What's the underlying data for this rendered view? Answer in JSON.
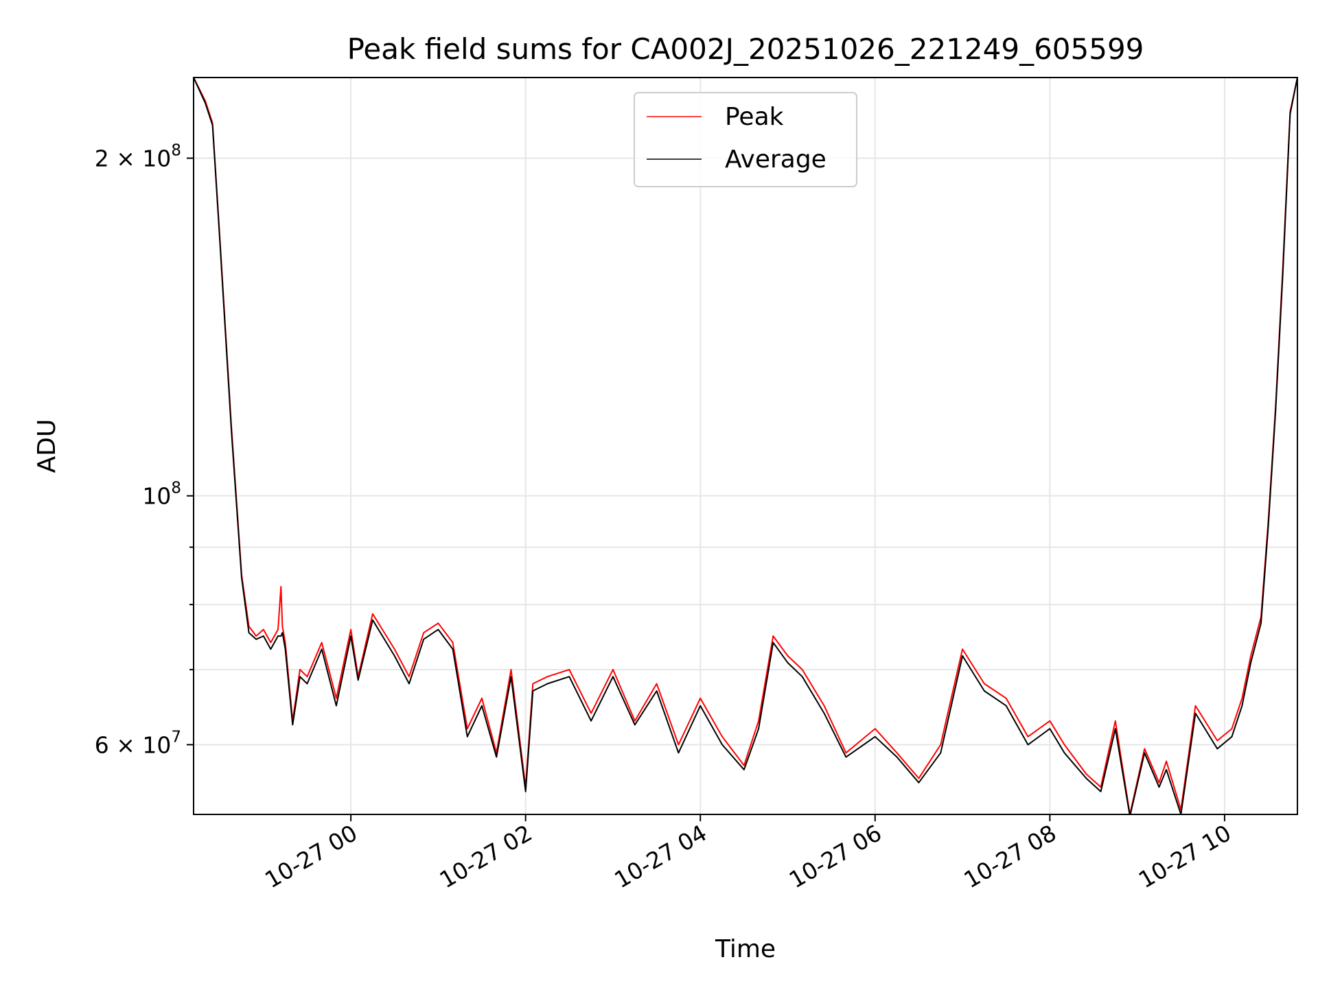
{
  "chart_data": {
    "type": "line",
    "title": "Peak field sums for CA002J_20251026_221249_605599",
    "xlabel": "Time",
    "ylabel": "ADU",
    "yscale": "log",
    "xlim": [
      "2025-10-26 22:12",
      "2025-10-27 10:50"
    ],
    "ylim": [
      52000000,
      236000000
    ],
    "grid": true,
    "legend_position": "top-center",
    "x_ticks": [
      {
        "value": "2025-10-27 00:00",
        "label": "10-27 00"
      },
      {
        "value": "2025-10-27 02:00",
        "label": "10-27 02"
      },
      {
        "value": "2025-10-27 04:00",
        "label": "10-27 04"
      },
      {
        "value": "2025-10-27 06:00",
        "label": "10-27 06"
      },
      {
        "value": "2025-10-27 08:00",
        "label": "10-27 08"
      },
      {
        "value": "2025-10-27 10:00",
        "label": "10-27 10"
      }
    ],
    "y_ticks_major": [
      {
        "value": 60000000,
        "label_mantissa": "6",
        "label_exp": "7"
      },
      {
        "value": 100000000,
        "label_mantissa": "",
        "label_exp": "8"
      },
      {
        "value": 200000000,
        "label_mantissa": "2",
        "label_exp": "8"
      }
    ],
    "y_ticks_minor": [
      70000000,
      80000000,
      90000000
    ],
    "series": [
      {
        "name": "Peak",
        "color": "#ff0000",
        "x": [
          "2025-10-26 22:12",
          "2025-10-26 22:20",
          "2025-10-26 22:25",
          "2025-10-26 22:30",
          "2025-10-26 22:38",
          "2025-10-26 22:45",
          "2025-10-26 22:50",
          "2025-10-26 22:55",
          "2025-10-26 23:00",
          "2025-10-26 23:05",
          "2025-10-26 23:10",
          "2025-10-26 23:12",
          "2025-10-26 23:13",
          "2025-10-26 23:15",
          "2025-10-26 23:20",
          "2025-10-26 23:25",
          "2025-10-26 23:30",
          "2025-10-26 23:40",
          "2025-10-26 23:50",
          "2025-10-27 00:00",
          "2025-10-27 00:05",
          "2025-10-27 00:15",
          "2025-10-27 00:30",
          "2025-10-27 00:40",
          "2025-10-27 00:50",
          "2025-10-27 01:00",
          "2025-10-27 01:10",
          "2025-10-27 01:20",
          "2025-10-27 01:30",
          "2025-10-27 01:40",
          "2025-10-27 01:50",
          "2025-10-27 02:00",
          "2025-10-27 02:05",
          "2025-10-27 02:15",
          "2025-10-27 02:30",
          "2025-10-27 02:45",
          "2025-10-27 03:00",
          "2025-10-27 03:15",
          "2025-10-27 03:30",
          "2025-10-27 03:45",
          "2025-10-27 04:00",
          "2025-10-27 04:15",
          "2025-10-27 04:30",
          "2025-10-27 04:40",
          "2025-10-27 04:50",
          "2025-10-27 05:00",
          "2025-10-27 05:10",
          "2025-10-27 05:25",
          "2025-10-27 05:40",
          "2025-10-27 06:00",
          "2025-10-27 06:15",
          "2025-10-27 06:30",
          "2025-10-27 06:45",
          "2025-10-27 07:00",
          "2025-10-27 07:15",
          "2025-10-27 07:30",
          "2025-10-27 07:45",
          "2025-10-27 08:00",
          "2025-10-27 08:10",
          "2025-10-27 08:25",
          "2025-10-27 08:35",
          "2025-10-27 08:45",
          "2025-10-27 08:55",
          "2025-10-27 09:05",
          "2025-10-27 09:15",
          "2025-10-27 09:20",
          "2025-10-27 09:30",
          "2025-10-27 09:40",
          "2025-10-27 09:55",
          "2025-10-27 10:05",
          "2025-10-27 10:12",
          "2025-10-27 10:18",
          "2025-10-27 10:25",
          "2025-10-27 10:30",
          "2025-10-27 10:35",
          "2025-10-27 10:40",
          "2025-10-27 10:45",
          "2025-10-27 10:50"
        ],
        "y": [
          236000000,
          225000000,
          215000000,
          170000000,
          115000000,
          85000000,
          76500000,
          75000000,
          76000000,
          74000000,
          76000000,
          83000000,
          76500000,
          74000000,
          63000000,
          70000000,
          69000000,
          74000000,
          66000000,
          76000000,
          69000000,
          78500000,
          73000000,
          69000000,
          75500000,
          77000000,
          74000000,
          62000000,
          66000000,
          59000000,
          70000000,
          55000000,
          68000000,
          69000000,
          70000000,
          64000000,
          70000000,
          63000000,
          68000000,
          60000000,
          66000000,
          61000000,
          57500000,
          63000000,
          75000000,
          72000000,
          70000000,
          65000000,
          59000000,
          62000000,
          59000000,
          56000000,
          60000000,
          73000000,
          68000000,
          66000000,
          61000000,
          63000000,
          60000000,
          56500000,
          55000000,
          63000000,
          52000000,
          59500000,
          55500000,
          58000000,
          52500000,
          65000000,
          60500000,
          62000000,
          66000000,
          72000000,
          78000000,
          95000000,
          120000000,
          160000000,
          220000000,
          236000000
        ]
      },
      {
        "name": "Average",
        "color": "#000000",
        "x": [
          "2025-10-26 22:12",
          "2025-10-26 22:20",
          "2025-10-26 22:25",
          "2025-10-26 22:30",
          "2025-10-26 22:38",
          "2025-10-26 22:45",
          "2025-10-26 22:50",
          "2025-10-26 22:55",
          "2025-10-26 23:00",
          "2025-10-26 23:05",
          "2025-10-26 23:10",
          "2025-10-26 23:12",
          "2025-10-26 23:13",
          "2025-10-26 23:15",
          "2025-10-26 23:20",
          "2025-10-26 23:25",
          "2025-10-26 23:30",
          "2025-10-26 23:40",
          "2025-10-26 23:50",
          "2025-10-27 00:00",
          "2025-10-27 00:05",
          "2025-10-27 00:15",
          "2025-10-27 00:30",
          "2025-10-27 00:40",
          "2025-10-27 00:50",
          "2025-10-27 01:00",
          "2025-10-27 01:10",
          "2025-10-27 01:20",
          "2025-10-27 01:30",
          "2025-10-27 01:40",
          "2025-10-27 01:50",
          "2025-10-27 02:00",
          "2025-10-27 02:05",
          "2025-10-27 02:15",
          "2025-10-27 02:30",
          "2025-10-27 02:45",
          "2025-10-27 03:00",
          "2025-10-27 03:15",
          "2025-10-27 03:30",
          "2025-10-27 03:45",
          "2025-10-27 04:00",
          "2025-10-27 04:15",
          "2025-10-27 04:30",
          "2025-10-27 04:40",
          "2025-10-27 04:50",
          "2025-10-27 05:00",
          "2025-10-27 05:10",
          "2025-10-27 05:25",
          "2025-10-27 05:40",
          "2025-10-27 06:00",
          "2025-10-27 06:15",
          "2025-10-27 06:30",
          "2025-10-27 06:45",
          "2025-10-27 07:00",
          "2025-10-27 07:15",
          "2025-10-27 07:30",
          "2025-10-27 07:45",
          "2025-10-27 08:00",
          "2025-10-27 08:10",
          "2025-10-27 08:25",
          "2025-10-27 08:35",
          "2025-10-27 08:45",
          "2025-10-27 08:55",
          "2025-10-27 09:05",
          "2025-10-27 09:15",
          "2025-10-27 09:20",
          "2025-10-27 09:30",
          "2025-10-27 09:40",
          "2025-10-27 09:55",
          "2025-10-27 10:05",
          "2025-10-27 10:12",
          "2025-10-27 10:18",
          "2025-10-27 10:25",
          "2025-10-27 10:30",
          "2025-10-27 10:35",
          "2025-10-27 10:40",
          "2025-10-27 10:45",
          "2025-10-27 10:50"
        ],
        "y": [
          236000000,
          224000000,
          214000000,
          169000000,
          114000000,
          84500000,
          75500000,
          74500000,
          75000000,
          73000000,
          75000000,
          75000000,
          75500000,
          73000000,
          62500000,
          69000000,
          68000000,
          73000000,
          65000000,
          75000000,
          68500000,
          77500000,
          72000000,
          68000000,
          74500000,
          76000000,
          73000000,
          61000000,
          65000000,
          58500000,
          69000000,
          54500000,
          67000000,
          68000000,
          69000000,
          63000000,
          69000000,
          62500000,
          67000000,
          59000000,
          65000000,
          60000000,
          57000000,
          62000000,
          74000000,
          71000000,
          69000000,
          64000000,
          58500000,
          61000000,
          58500000,
          55500000,
          59000000,
          72000000,
          67000000,
          65000000,
          60000000,
          62000000,
          59000000,
          56000000,
          54500000,
          62000000,
          51800000,
          59000000,
          55000000,
          57000000,
          52000000,
          64000000,
          59500000,
          61000000,
          65000000,
          71000000,
          77000000,
          94000000,
          119000000,
          158000000,
          219000000,
          236000000
        ]
      }
    ]
  }
}
